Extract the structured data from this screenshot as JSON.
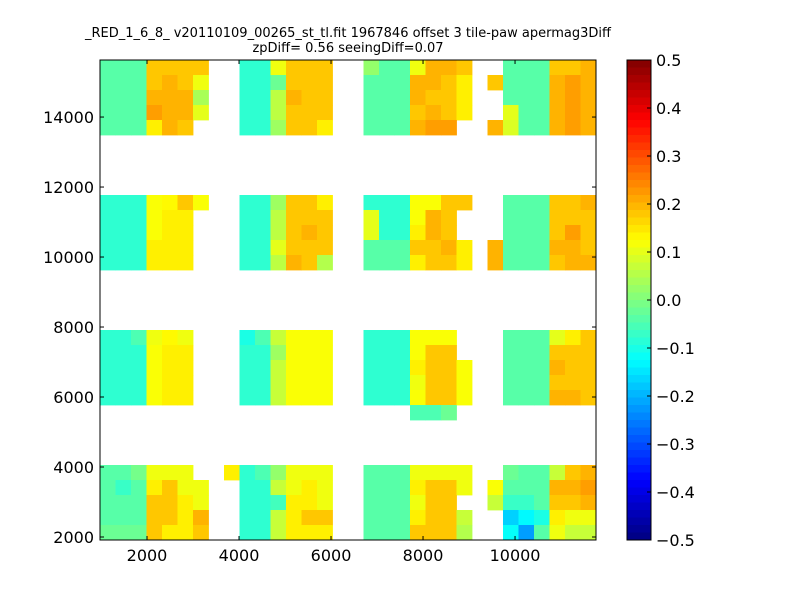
{
  "chart_data": {
    "type": "heatmap",
    "title": "_RED_1_6_8_ v20110109_00265_st_tl.fit 1967846 offset 3 tile-paw apermag3Diff",
    "subtitle": "zpDiff= 0.56 seeingDiff=0.07",
    "xlabel": "",
    "ylabel": "",
    "xlim": [
      978,
      11760
    ],
    "ylim": [
      1914,
      15630
    ],
    "xticks": [
      2000,
      4000,
      6000,
      8000,
      10000
    ],
    "xtick_labels": [
      "2000",
      "4000",
      "6000",
      "8000",
      "10000"
    ],
    "yticks": [
      2000,
      4000,
      6000,
      8000,
      10000,
      12000,
      14000
    ],
    "ytick_labels": [
      "2000",
      "4000",
      "6000",
      "8000",
      "10000",
      "12000",
      "14000"
    ],
    "colormap": "jet",
    "clim": [
      -0.5,
      0.5
    ],
    "colorbar": {
      "ticks": [
        -0.5,
        -0.4,
        -0.3,
        -0.2,
        -0.1,
        0.0,
        0.1,
        0.2,
        0.3,
        0.4,
        0.5
      ],
      "tick_labels": [
        "−0.5",
        "−0.4",
        "−0.3",
        "−0.2",
        "−0.1",
        "0.0",
        "0.1",
        "0.2",
        "0.3",
        "0.4",
        "0.5"
      ]
    },
    "grid": false,
    "n_cols": 32,
    "n_rows": 32,
    "rows_top_to_bottom": [
      [
        -0.04,
        -0.04,
        -0.04,
        0.18,
        0.18,
        0.18,
        0.18,
        null,
        null,
        -0.08,
        -0.08,
        0.11,
        0.18,
        0.18,
        0.18,
        null,
        null,
        0.02,
        -0.04,
        -0.04,
        0.11,
        0.2,
        0.2,
        0.18,
        null,
        null,
        -0.04,
        -0.04,
        -0.04,
        0.18,
        0.18,
        0.2
      ],
      [
        -0.04,
        -0.04,
        -0.04,
        0.18,
        0.2,
        0.18,
        0.11,
        null,
        null,
        -0.08,
        -0.08,
        -0.02,
        0.18,
        0.18,
        0.18,
        null,
        null,
        -0.04,
        -0.04,
        -0.04,
        0.2,
        0.2,
        0.18,
        0.14,
        null,
        0.18,
        -0.04,
        -0.04,
        -0.04,
        0.2,
        0.22,
        0.2
      ],
      [
        -0.04,
        -0.04,
        -0.04,
        0.2,
        0.2,
        0.2,
        0.04,
        null,
        null,
        -0.08,
        -0.08,
        0.06,
        0.2,
        0.18,
        0.18,
        null,
        null,
        -0.04,
        -0.04,
        -0.04,
        0.2,
        0.18,
        0.18,
        0.14,
        null,
        null,
        -0.04,
        -0.04,
        -0.04,
        0.2,
        0.22,
        0.2
      ],
      [
        -0.04,
        -0.04,
        -0.04,
        0.22,
        0.2,
        0.2,
        0.1,
        null,
        null,
        -0.08,
        -0.08,
        0.06,
        0.18,
        0.18,
        0.18,
        null,
        null,
        -0.04,
        -0.04,
        -0.04,
        0.18,
        0.2,
        0.18,
        0.14,
        null,
        null,
        0.1,
        -0.04,
        -0.04,
        0.2,
        0.22,
        0.2
      ],
      [
        -0.04,
        -0.04,
        -0.04,
        0.14,
        0.2,
        0.18,
        null,
        null,
        null,
        -0.08,
        -0.08,
        0.03,
        0.18,
        0.18,
        0.14,
        null,
        null,
        -0.04,
        -0.04,
        -0.04,
        0.2,
        0.22,
        0.22,
        null,
        null,
        0.2,
        0.09,
        -0.04,
        -0.04,
        0.2,
        0.22,
        0.2
      ],
      [],
      [],
      [],
      [],
      [
        -0.08,
        -0.08,
        -0.08,
        0.12,
        0.13,
        0.18,
        0.12,
        null,
        null,
        -0.08,
        -0.08,
        0.03,
        0.18,
        0.18,
        0.14,
        null,
        null,
        -0.08,
        -0.08,
        -0.08,
        0.12,
        0.12,
        0.18,
        0.18,
        null,
        null,
        -0.04,
        -0.04,
        -0.04,
        0.18,
        0.18,
        0.2
      ],
      [
        -0.08,
        -0.08,
        -0.08,
        0.12,
        0.14,
        0.14,
        null,
        null,
        null,
        -0.08,
        -0.08,
        0.06,
        0.18,
        0.18,
        0.18,
        null,
        null,
        0.1,
        -0.08,
        -0.08,
        0.12,
        0.2,
        0.18,
        null,
        null,
        null,
        -0.04,
        -0.04,
        -0.04,
        0.18,
        0.18,
        0.18
      ],
      [
        -0.08,
        -0.08,
        -0.08,
        0.12,
        0.14,
        0.14,
        null,
        null,
        null,
        -0.08,
        -0.08,
        0.06,
        0.18,
        0.2,
        0.18,
        null,
        null,
        0.1,
        -0.08,
        -0.08,
        0.14,
        0.2,
        0.18,
        null,
        null,
        null,
        -0.04,
        -0.04,
        -0.04,
        0.18,
        0.22,
        0.18
      ],
      [
        -0.08,
        -0.08,
        -0.08,
        0.14,
        0.14,
        0.14,
        null,
        null,
        null,
        -0.08,
        -0.08,
        0.1,
        0.18,
        0.18,
        0.18,
        null,
        null,
        -0.04,
        -0.04,
        -0.04,
        0.18,
        0.18,
        0.2,
        0.14,
        null,
        0.2,
        -0.04,
        -0.04,
        -0.04,
        0.2,
        0.2,
        0.18
      ],
      [
        -0.08,
        -0.08,
        -0.08,
        0.14,
        0.14,
        0.14,
        null,
        null,
        null,
        -0.08,
        -0.08,
        0.06,
        0.2,
        0.18,
        0.05,
        null,
        null,
        -0.04,
        -0.04,
        -0.04,
        0.14,
        0.18,
        0.18,
        0.14,
        null,
        0.2,
        -0.04,
        -0.04,
        -0.04,
        0.18,
        0.2,
        0.2
      ],
      [],
      [],
      [],
      [],
      [
        -0.08,
        -0.08,
        -0.05,
        0.11,
        0.13,
        0.11,
        null,
        null,
        null,
        -0.1,
        -0.05,
        0.07,
        0.12,
        0.12,
        0.12,
        null,
        null,
        -0.08,
        -0.08,
        -0.08,
        0.12,
        0.12,
        0.12,
        null,
        null,
        null,
        -0.04,
        -0.04,
        -0.04,
        0.1,
        0.14,
        0.18
      ],
      [
        -0.08,
        -0.08,
        -0.08,
        0.12,
        0.14,
        0.14,
        null,
        null,
        null,
        -0.08,
        -0.08,
        0.03,
        0.12,
        0.12,
        0.12,
        null,
        null,
        -0.08,
        -0.08,
        -0.08,
        0.12,
        0.18,
        0.18,
        null,
        null,
        null,
        -0.04,
        -0.04,
        -0.04,
        0.18,
        0.18,
        0.18
      ],
      [
        -0.08,
        -0.08,
        -0.08,
        0.12,
        0.14,
        0.14,
        null,
        null,
        null,
        -0.08,
        -0.08,
        0.07,
        0.12,
        0.12,
        0.12,
        null,
        null,
        -0.08,
        -0.08,
        -0.08,
        0.14,
        0.18,
        0.18,
        0.12,
        null,
        null,
        -0.04,
        -0.04,
        -0.04,
        0.2,
        0.18,
        0.18
      ],
      [
        -0.08,
        -0.08,
        -0.08,
        0.12,
        0.14,
        0.14,
        null,
        null,
        null,
        -0.08,
        -0.08,
        0.07,
        0.12,
        0.12,
        0.12,
        null,
        null,
        -0.08,
        -0.08,
        -0.08,
        0.11,
        0.18,
        0.18,
        0.12,
        null,
        null,
        -0.04,
        -0.04,
        -0.04,
        0.18,
        0.18,
        0.18
      ],
      [
        -0.08,
        -0.08,
        -0.08,
        0.12,
        0.14,
        0.14,
        null,
        null,
        null,
        -0.08,
        -0.08,
        0.07,
        0.12,
        0.12,
        0.12,
        null,
        null,
        -0.08,
        -0.08,
        -0.08,
        0.12,
        0.18,
        0.18,
        0.12,
        null,
        null,
        -0.04,
        -0.04,
        -0.04,
        0.2,
        0.2,
        0.18
      ],
      [
        null,
        null,
        null,
        null,
        null,
        null,
        null,
        null,
        null,
        null,
        null,
        null,
        null,
        null,
        null,
        null,
        null,
        null,
        null,
        null,
        -0.05,
        -0.05,
        -0.02,
        null,
        null,
        null,
        null,
        null,
        null,
        null,
        null,
        null
      ],
      [],
      [],
      [],
      [
        -0.04,
        -0.04,
        -0.01,
        0.11,
        0.11,
        0.11,
        null,
        null,
        0.14,
        -0.08,
        -0.05,
        0.02,
        0.11,
        0.11,
        0.11,
        null,
        null,
        -0.04,
        -0.04,
        -0.04,
        0.11,
        0.11,
        0.11,
        0.11,
        null,
        null,
        -0.02,
        -0.04,
        -0.04,
        0.07,
        0.18,
        0.2
      ],
      [
        -0.04,
        -0.07,
        -0.04,
        0.14,
        0.18,
        0.11,
        0.11,
        null,
        null,
        -0.08,
        -0.08,
        0.07,
        0.11,
        0.14,
        0.11,
        null,
        null,
        -0.04,
        -0.04,
        -0.04,
        0.14,
        0.18,
        0.18,
        0.11,
        null,
        0.12,
        -0.04,
        -0.04,
        -0.04,
        0.2,
        0.2,
        0.22
      ],
      [
        -0.04,
        -0.04,
        -0.04,
        0.18,
        0.18,
        0.14,
        0.11,
        null,
        null,
        -0.08,
        -0.08,
        -0.06,
        0.14,
        0.14,
        0.11,
        null,
        null,
        -0.04,
        -0.04,
        -0.04,
        0.11,
        0.18,
        0.18,
        null,
        null,
        0.07,
        -0.07,
        -0.07,
        -0.04,
        0.18,
        0.18,
        0.2
      ],
      [
        -0.04,
        -0.04,
        -0.04,
        0.18,
        0.18,
        0.14,
        0.2,
        null,
        null,
        -0.08,
        -0.08,
        0.07,
        0.14,
        0.18,
        0.18,
        null,
        null,
        -0.04,
        -0.04,
        -0.04,
        0.14,
        0.18,
        0.18,
        0.07,
        null,
        null,
        -0.17,
        -0.13,
        -0.1,
        0.14,
        0.11,
        0.11
      ],
      [
        -0.02,
        -0.02,
        -0.02,
        0.18,
        0.14,
        0.14,
        0.18,
        null,
        null,
        -0.08,
        -0.08,
        0.07,
        0.14,
        0.14,
        0.14,
        null,
        null,
        -0.04,
        -0.04,
        -0.04,
        0.18,
        0.18,
        0.18,
        0.05,
        null,
        null,
        -0.12,
        -0.22,
        -0.04,
        0.11,
        0.07,
        0.07
      ]
    ]
  }
}
